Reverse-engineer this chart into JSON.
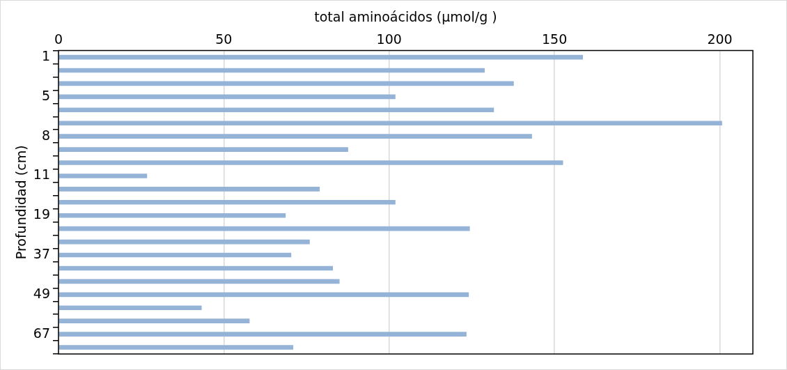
{
  "chart_data": {
    "type": "bar",
    "orientation": "horizontal",
    "xlabel": "total aminoácidos (µmol/g )",
    "ylabel": "Profundidad (cm)",
    "categories": [
      "1",
      null,
      null,
      "5",
      null,
      null,
      "8",
      null,
      null,
      "11",
      null,
      null,
      "19",
      null,
      null,
      "37",
      null,
      null,
      "49",
      null,
      null,
      "67",
      null
    ],
    "values": [
      158.6,
      128.9,
      137.7,
      101.9,
      131.7,
      200.7,
      143.2,
      87.6,
      152.6,
      26.8,
      79.0,
      101.9,
      68.7,
      124.4,
      76.0,
      70.4,
      83.0,
      85.0,
      124.1,
      43.3,
      57.8,
      123.4,
      71.0
    ],
    "color": "#95b3d7",
    "xlim": [
      0,
      210
    ],
    "xticks": [
      0,
      50,
      100,
      150,
      200
    ],
    "grid": "x"
  }
}
